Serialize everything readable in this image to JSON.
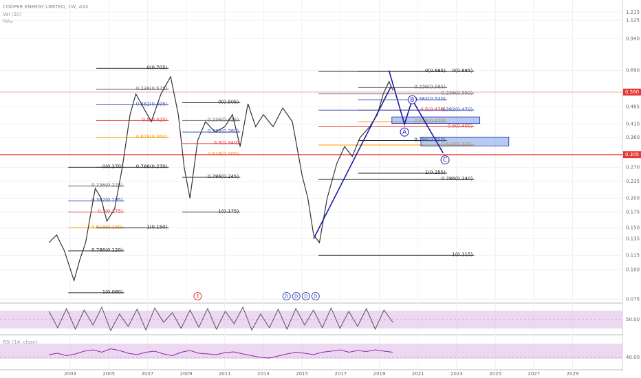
{
  "chart_data": {
    "type": "line",
    "title": "COOPER ENERGY LIMITED, 1W, ASX",
    "indicators": [
      "Vol (20)",
      "MAs"
    ],
    "log_scale": true,
    "color": "#333333",
    "xlim": [
      1999.37,
      2031.58
    ],
    "xticks": [
      2003,
      2005,
      2007,
      2009,
      2011,
      2013,
      2015,
      2017,
      2019,
      2021,
      2023,
      2025,
      2027,
      2029
    ],
    "ylim": [
      0.0728,
      1.368
    ],
    "yticks": [
      {
        "value": 1.215,
        "label": "1.215"
      },
      {
        "value": 1.125,
        "label": "1.125"
      },
      {
        "value": 0.94,
        "label": "0.940"
      },
      {
        "value": 0.69,
        "label": "0.690"
      },
      {
        "value": 0.485,
        "label": "0.485"
      },
      {
        "value": 0.41,
        "label": "0.410"
      },
      {
        "value": 0.36,
        "label": "0.360"
      },
      {
        "value": 0.27,
        "label": "0.270"
      },
      {
        "value": 0.235,
        "label": "0.235"
      },
      {
        "value": 0.2,
        "label": "0.200"
      },
      {
        "value": 0.175,
        "label": "0.175"
      },
      {
        "value": 0.15,
        "label": "0.150"
      },
      {
        "value": 0.135,
        "label": "0.135"
      },
      {
        "value": 0.115,
        "label": "0.115"
      },
      {
        "value": 0.1,
        "label": "0.100"
      },
      {
        "value": 0.075,
        "label": "0.075"
      }
    ],
    "grid": true,
    "x": [
      2001.9,
      2002.3,
      2002.7,
      2003.2,
      2003.5,
      2003.8,
      2004.3,
      2004.6,
      2004.9,
      2005.3,
      2005.7,
      2006.1,
      2006.4,
      2006.8,
      2007.2,
      2007.7,
      2008.2,
      2008.6,
      2008.9,
      2009.2,
      2009.6,
      2010.0,
      2010.5,
      2011.0,
      2011.4,
      2011.8,
      2012.2,
      2012.6,
      2013.0,
      2013.5,
      2014.0,
      2014.5,
      2015.0,
      2015.3,
      2015.6,
      2015.9,
      2016.3,
      2016.8,
      2017.2,
      2017.6,
      2018.0,
      2018.5,
      2018.9,
      2019.2,
      2019.5,
      2019.7
    ],
    "values": [
      0.13,
      0.14,
      0.12,
      0.09,
      0.11,
      0.13,
      0.22,
      0.2,
      0.16,
      0.18,
      0.27,
      0.45,
      0.55,
      0.48,
      0.42,
      0.55,
      0.65,
      0.45,
      0.27,
      0.2,
      0.35,
      0.42,
      0.38,
      0.4,
      0.45,
      0.33,
      0.5,
      0.4,
      0.45,
      0.4,
      0.48,
      0.42,
      0.25,
      0.2,
      0.14,
      0.13,
      0.2,
      0.28,
      0.33,
      0.3,
      0.36,
      0.4,
      0.45,
      0.55,
      0.62,
      0.57
    ],
    "price_markers": [
      {
        "value": 0.56,
        "label": "0.560",
        "color": "#e53935"
      },
      {
        "value": 0.305,
        "label": "0.305",
        "color": "#e53935"
      }
    ],
    "fib_colors": [
      "#222222",
      "#666666",
      "#3f51b5",
      "#e53935",
      "#ff9800",
      "#222222",
      "#222222"
    ],
    "fib_sets": [
      {
        "x": [
          2002.9,
          2005.8
        ],
        "levels": [
          {
            "label": "0(0.270)",
            "value": 0.27
          },
          {
            "label": "0.236(0.225)",
            "value": 0.225
          },
          {
            "label": "0.382(0.195)",
            "value": 0.195
          },
          {
            "label": "0.5(0.175)",
            "value": 0.175
          },
          {
            "label": "0.618(0.150)",
            "value": 0.15
          },
          {
            "label": "0.786(0.120)",
            "value": 0.12
          },
          {
            "label": "1(0.080)",
            "value": 0.08
          }
        ]
      },
      {
        "x": [
          2004.35,
          2008.1
        ],
        "levels": [
          {
            "label": "0(0.705)",
            "value": 0.705
          },
          {
            "label": "0.236(0.575)",
            "value": 0.575
          },
          {
            "label": "0.382(0.495)",
            "value": 0.495
          },
          {
            "label": "0.5(0.425)",
            "value": 0.425
          },
          {
            "label": "0.618(0.360)",
            "value": 0.36
          },
          {
            "label": "0.786(0.270)",
            "value": 0.27
          },
          {
            "label": "1(0.150)",
            "value": 0.15
          }
        ]
      },
      {
        "x": [
          2008.8,
          2011.8
        ],
        "levels": [
          {
            "label": "0(0.505)",
            "value": 0.505
          },
          {
            "label": "0.236(0.425)",
            "value": 0.425
          },
          {
            "label": "0.382(0.380)",
            "value": 0.38
          },
          {
            "label": "0.5(0.340)",
            "value": 0.34
          },
          {
            "label": "0.618(0.305)",
            "value": 0.305
          },
          {
            "label": "0.786(0.245)",
            "value": 0.245
          },
          {
            "label": "1(0.175)",
            "value": 0.175
          }
        ]
      },
      {
        "x": [
          2017.9,
          2022.5
        ],
        "levels": [
          {
            "label": "0(0.685)",
            "value": 0.685
          },
          {
            "label": "0.236(0.585)",
            "value": 0.585
          },
          {
            "label": "0.382(0.520)",
            "value": 0.52
          },
          {
            "label": "0.5(0.470)",
            "value": 0.47
          },
          {
            "label": "0.618(0.420)",
            "value": 0.42
          },
          {
            "label": "0.786(0.350)",
            "value": 0.35
          },
          {
            "label": "1(0.255)",
            "value": 0.255
          }
        ]
      },
      {
        "x": [
          2015.85,
          2023.9
        ],
        "levels": [
          {
            "label": "0(0.685)",
            "value": 0.685
          },
          {
            "label": "0.236(0.550)",
            "value": 0.55
          },
          {
            "label": "0.382(0.470)",
            "value": 0.47
          },
          {
            "label": "0.5(0.400)",
            "value": 0.4
          },
          {
            "label": "0.618(0.335)",
            "value": 0.335
          },
          {
            "label": "0.786(0.240)",
            "value": 0.24
          },
          {
            "label": "1(0.115)",
            "value": 0.115
          }
        ]
      }
    ],
    "drawings": [
      {
        "x": [
          2015.6,
          2019.6
        ],
        "values": [
          0.135,
          0.59
        ],
        "color": "#1a1aa8"
      },
      {
        "x": [
          2019.5,
          2020.3,
          2020.7,
          2022.3
        ],
        "values": [
          0.69,
          0.41,
          0.52,
          0.31
        ],
        "color": "#1a1aa8"
      }
    ],
    "zones": [
      {
        "x": [
          2019.65,
          2024.2
        ],
        "values": [
          0.44,
          0.413
        ],
        "color": "#5b8ce0"
      },
      {
        "x": [
          2021.15,
          2025.7
        ],
        "values": [
          0.362,
          0.332
        ],
        "color": "#5b8ce0"
      }
    ],
    "waves": [
      {
        "label": "A",
        "x": 2020.3,
        "value": 0.38
      },
      {
        "label": "B",
        "x": 2020.7,
        "value": 0.52
      },
      {
        "label": "C",
        "x": 2022.4,
        "value": 0.29
      }
    ],
    "events": [
      {
        "label": "E",
        "x": 2009.6,
        "color": "#e53935"
      },
      {
        "label": "D",
        "x": 2014.2,
        "color": "#3f51b5"
      },
      {
        "label": "D",
        "x": 2014.7,
        "color": "#3f51b5"
      },
      {
        "label": "D",
        "x": 2015.2,
        "color": "#3f51b5"
      },
      {
        "label": "D",
        "x": 2015.7,
        "color": "#3f51b5"
      }
    ],
    "stoch": {
      "yticks": [
        {
          "value": 50,
          "label": "50.00"
        }
      ],
      "ylim": [
        0,
        100
      ],
      "values": [
        80,
        20,
        90,
        15,
        85,
        30,
        95,
        10,
        70,
        25,
        88,
        12,
        92,
        40,
        75,
        18,
        85,
        22,
        90,
        15,
        80,
        35,
        95,
        12,
        70,
        20,
        88,
        15,
        90,
        30,
        85,
        20,
        92,
        18,
        80,
        25,
        90,
        15,
        85,
        40
      ]
    },
    "rsi": {
      "label": "RSI (14, close)",
      "yticks": [
        {
          "value": 40,
          "label": "40.00"
        }
      ],
      "ylim": [
        0,
        100
      ],
      "values": [
        48,
        52,
        45,
        50,
        58,
        62,
        55,
        65,
        60,
        52,
        48,
        55,
        58,
        50,
        45,
        55,
        60,
        52,
        50,
        48,
        54,
        56,
        50,
        45,
        40,
        38,
        44,
        50,
        55,
        52,
        48,
        55,
        58,
        62,
        55,
        60,
        57,
        62,
        58,
        55
      ]
    }
  }
}
